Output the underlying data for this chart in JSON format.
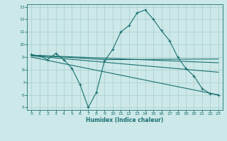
{
  "xlabel": "Humidex (Indice chaleur)",
  "bg_color": "#cce8e8",
  "grid_color": "#aacccc",
  "line_color": "#1a7070",
  "xlim": [
    -0.5,
    23.5
  ],
  "ylim": [
    4.8,
    13.2
  ],
  "xticks": [
    0,
    1,
    2,
    3,
    4,
    5,
    6,
    7,
    8,
    9,
    10,
    11,
    12,
    13,
    14,
    15,
    16,
    17,
    18,
    19,
    20,
    21,
    22,
    23
  ],
  "yticks": [
    5,
    6,
    7,
    8,
    9,
    10,
    11,
    12,
    13
  ],
  "line1_x": [
    0,
    1,
    2,
    3,
    4,
    5,
    6,
    7,
    8,
    9,
    10,
    11,
    12,
    13,
    14,
    15,
    16,
    17,
    18,
    19,
    20,
    21,
    22,
    23
  ],
  "line1_y": [
    9.2,
    9.1,
    8.8,
    9.3,
    8.8,
    8.1,
    6.8,
    5.0,
    6.2,
    8.7,
    9.6,
    11.0,
    11.5,
    12.5,
    12.75,
    12.0,
    11.1,
    10.3,
    9.0,
    8.1,
    7.5,
    6.5,
    6.1,
    6.0
  ],
  "line2_x": [
    0,
    4,
    9,
    23
  ],
  "line2_y": [
    9.15,
    9.0,
    8.8,
    8.85
  ],
  "line3_x": [
    0,
    23
  ],
  "line3_y": [
    9.15,
    8.55
  ],
  "line4_x": [
    0,
    23
  ],
  "line4_y": [
    9.1,
    7.8
  ],
  "line5_x": [
    0,
    23
  ],
  "line5_y": [
    9.0,
    6.0
  ]
}
